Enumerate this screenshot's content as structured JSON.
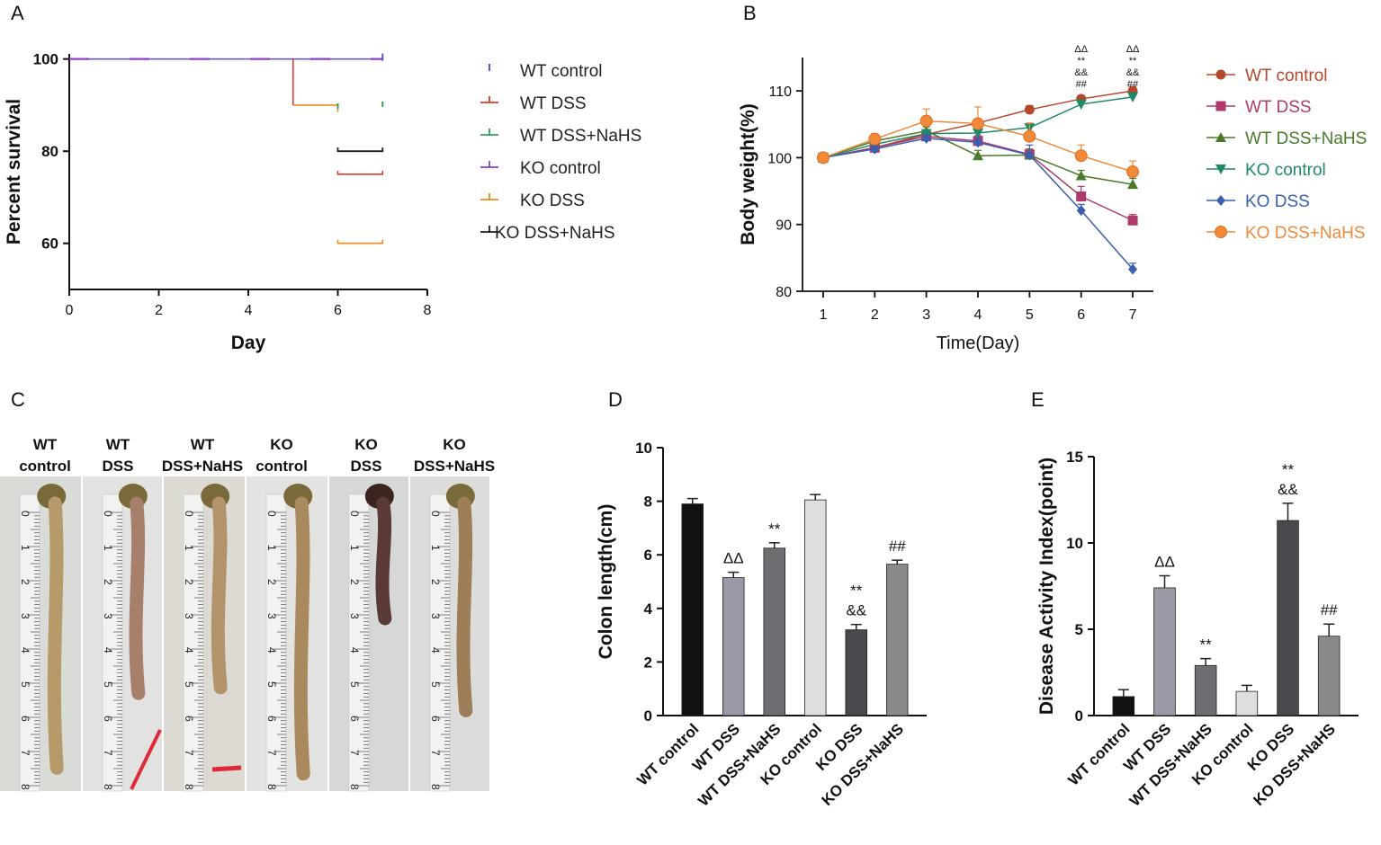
{
  "panels": {
    "A": {
      "letter": "A"
    },
    "B": {
      "letter": "B"
    },
    "C": {
      "letter": "C"
    },
    "D": {
      "letter": "D"
    },
    "E": {
      "letter": "E"
    }
  },
  "colors": {
    "wt_control_km": "#5b4fc4",
    "wt_dss_km": "#e03a2a",
    "wt_dss_nahs_km": "#2aa35a",
    "ko_control_km": "#8a3fc8",
    "ko_dss_km": "#f08a1a",
    "ko_dss_nahs_km": "#1a1a1a",
    "wt_control_bw": "#b5472a",
    "wt_dss_bw": "#b03a6e",
    "wt_dss_nahs_bw": "#4a7a2a",
    "ko_control_bw": "#1f8a6a",
    "ko_dss_bw": "#3a5fb0",
    "ko_dss_nahs_bw": "#f08a3a",
    "bar_black": "#111111",
    "bar_mid": "#9a9aa6",
    "bar_darkgrey": "#6e6e72",
    "bar_light": "#dedede",
    "bar_dark": "#4a4a4e",
    "bar_grey2": "#8a8a8a"
  },
  "chart_data": [
    {
      "panel": "A",
      "type": "line",
      "subtype": "kaplan-meier",
      "title": "",
      "xlabel": "Day",
      "ylabel": "Percent survival",
      "xlim": [
        0,
        8
      ],
      "ylim": [
        50,
        105
      ],
      "xticks": [
        "0",
        "2",
        "4",
        "6",
        "8"
      ],
      "yticks": [
        "60",
        "80",
        "100"
      ],
      "series": [
        {
          "name": "WT control",
          "x": [
            0,
            7
          ],
          "y": [
            100,
            100
          ]
        },
        {
          "name": "WT DSS",
          "x": [
            0,
            5,
            5,
            7
          ],
          "y": [
            100,
            100,
            90,
            90
          ]
        },
        {
          "name": "WT DSS+NaHS",
          "x": [
            0,
            7
          ],
          "y": [
            100,
            90
          ]
        },
        {
          "name": "KO control",
          "x": [
            0,
            7
          ],
          "y": [
            100,
            100
          ]
        },
        {
          "name": "KO DSS",
          "x": [
            0,
            6,
            6,
            7
          ],
          "y": [
            100,
            100,
            60,
            60
          ]
        },
        {
          "name": "KO DSS+NaHS",
          "x": [
            0,
            6,
            6,
            7
          ],
          "y": [
            100,
            100,
            80,
            80
          ]
        }
      ],
      "legend": [
        "WT control",
        "WT DSS",
        "WT DSS+NaHS",
        "KO control",
        "KO DSS",
        "KO DSS+NaHS"
      ]
    },
    {
      "panel": "B",
      "type": "line",
      "title": "",
      "xlabel": "Time(Day)",
      "ylabel": "Body weight(%)",
      "xlim": [
        0.6,
        7.4
      ],
      "ylim": [
        80,
        115
      ],
      "xticks": [
        "1",
        "2",
        "3",
        "4",
        "5",
        "6",
        "7"
      ],
      "yticks": [
        "80",
        "90",
        "100",
        "110"
      ],
      "x": [
        1,
        2,
        3,
        4,
        5,
        6,
        7
      ],
      "series": [
        {
          "name": "WT control",
          "values": [
            100,
            101.5,
            103.5,
            105.2,
            107.2,
            108.8,
            110
          ]
        },
        {
          "name": "WT DSS",
          "values": [
            100,
            101.5,
            103.2,
            102.5,
            100.5,
            94.2,
            90.6
          ]
        },
        {
          "name": "WT DSS+NaHS",
          "values": [
            100,
            102.5,
            104,
            100.3,
            100.4,
            97.3,
            96
          ]
        },
        {
          "name": "KO control",
          "values": [
            100,
            102,
            103.6,
            103.7,
            104.5,
            108,
            109.1
          ]
        },
        {
          "name": "KO DSS",
          "values": [
            100,
            101.3,
            102.9,
            102.3,
            100.4,
            92.1,
            83.3
          ]
        },
        {
          "name": "KO DSS+NaHS",
          "values": [
            100,
            102.8,
            105.5,
            105.1,
            103.2,
            100.3,
            97.9
          ]
        }
      ],
      "errors": [
        [
          0.2,
          0.5,
          0.6,
          0.6,
          0.6,
          0.5,
          0.6
        ],
        [
          0.2,
          0.5,
          0.7,
          0.8,
          0.8,
          1.5,
          0.9
        ],
        [
          0.2,
          0.5,
          0.6,
          0.8,
          0.8,
          0.8,
          0.9
        ],
        [
          0.2,
          0.5,
          0.6,
          0.6,
          0.6,
          0.6,
          0.6
        ],
        [
          0.2,
          0.5,
          0.5,
          0.7,
          1.5,
          0.9,
          0.9
        ],
        [
          0.2,
          0.8,
          1.8,
          2.5,
          2.0,
          1.6,
          1.6
        ]
      ],
      "annotations": [
        {
          "x": 6,
          "lines": [
            "ΔΔ",
            "**",
            "&&",
            "##"
          ]
        },
        {
          "x": 7,
          "lines": [
            "ΔΔ",
            "**",
            "&&",
            "##"
          ]
        }
      ],
      "legend": [
        "WT control",
        "WT DSS",
        "WT DSS+NaHS",
        "KO control",
        "KO DSS",
        "KO DSS+NaHS"
      ]
    },
    {
      "panel": "D",
      "type": "bar",
      "title": "",
      "xlabel": "",
      "ylabel": "Colon length(cm)",
      "ylim": [
        0,
        10
      ],
      "yticks": [
        "0",
        "2",
        "4",
        "6",
        "8",
        "10"
      ],
      "categories": [
        "WT control",
        "WT DSS",
        "WT DSS+NaHS",
        "KO control",
        "KO DSS",
        "KO DSS+NaHS"
      ],
      "values": [
        7.9,
        5.15,
        6.25,
        8.05,
        3.2,
        5.65
      ],
      "errors": [
        0.2,
        0.2,
        0.2,
        0.2,
        0.2,
        0.15
      ],
      "annotations": [
        [],
        [
          "ΔΔ"
        ],
        [
          "**"
        ],
        [],
        [
          "**",
          "&&"
        ],
        [
          "##"
        ]
      ]
    },
    {
      "panel": "E",
      "type": "bar",
      "title": "",
      "xlabel": "",
      "ylabel": "Disease Activity Index(point)",
      "ylim": [
        0,
        15
      ],
      "yticks": [
        "0",
        "5",
        "10",
        "15"
      ],
      "categories": [
        "WT control",
        "WT DSS",
        "WT DSS+NaHS",
        "KO control",
        "KO DSS",
        "KO DSS+NaHS"
      ],
      "values": [
        1.1,
        7.4,
        2.9,
        1.4,
        11.3,
        4.6
      ],
      "errors": [
        0.4,
        0.7,
        0.4,
        0.35,
        1.0,
        0.7
      ],
      "annotations": [
        [],
        [
          "ΔΔ"
        ],
        [
          "**"
        ],
        [],
        [
          "**",
          "&&"
        ],
        [
          "##"
        ]
      ]
    }
  ],
  "photo_panel": {
    "groups": [
      {
        "line1": "WT",
        "line2": "control"
      },
      {
        "line1": "WT",
        "line2": "DSS"
      },
      {
        "line1": "WT",
        "line2": "DSS+NaHS"
      },
      {
        "line1": "KO",
        "line2": "control"
      },
      {
        "line1": "KO",
        "line2": "DSS"
      },
      {
        "line1": "KO",
        "line2": "DSS+NaHS"
      }
    ],
    "ruler_numbers": [
      "0",
      "1",
      "2",
      "3",
      "4",
      "5",
      "6",
      "7",
      "8"
    ],
    "ruler_unit": "1cm"
  }
}
